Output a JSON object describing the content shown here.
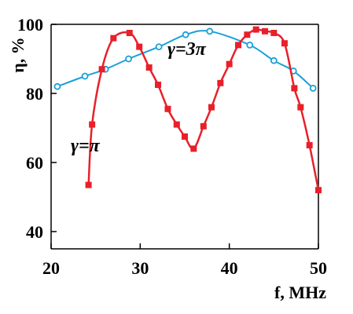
{
  "chart_data": {
    "type": "line",
    "xlabel": "f, MHz",
    "ylabel": "η, %",
    "xlim": [
      20,
      50
    ],
    "ylim": [
      35,
      100
    ],
    "xticks": [
      "20",
      "30",
      "40",
      "50"
    ],
    "yticks": [
      "40",
      "60",
      "80",
      "100"
    ],
    "grid": false,
    "series": [
      {
        "name": "γ=π",
        "color": "#e8202a",
        "marker": "filled-square",
        "x": [
          24.2,
          24.6,
          25.7,
          27.0,
          28.8,
          29.9,
          31.0,
          32.0,
          33.1,
          34.1,
          35.0,
          36.0,
          37.1,
          38.0,
          39.0,
          40.0,
          41.0,
          42.0,
          43.0,
          44.0,
          45.0,
          46.2,
          47.3,
          48.0,
          49.0,
          50.0
        ],
        "y": [
          53.5,
          71,
          87,
          96,
          97.5,
          93.5,
          87.5,
          82.5,
          75.5,
          71,
          67.5,
          64,
          70.5,
          76,
          83,
          88.5,
          94,
          97,
          98.5,
          98,
          97.5,
          94.5,
          81.5,
          76,
          65,
          52
        ]
      },
      {
        "name": "γ=3π",
        "color": "#1aa0d8",
        "marker": "open-circle",
        "x": [
          20.7,
          23.8,
          26.1,
          28.7,
          32.1,
          35.1,
          37.8,
          42.3,
          45.0,
          47.2,
          49.4
        ],
        "y": [
          82,
          85,
          87,
          90,
          93.5,
          97,
          98,
          94,
          89.5,
          86.5,
          81.5
        ]
      }
    ],
    "annotations": [
      {
        "text": "γ=π",
        "series": 0
      },
      {
        "text": "γ=3π",
        "series": 1
      }
    ]
  }
}
